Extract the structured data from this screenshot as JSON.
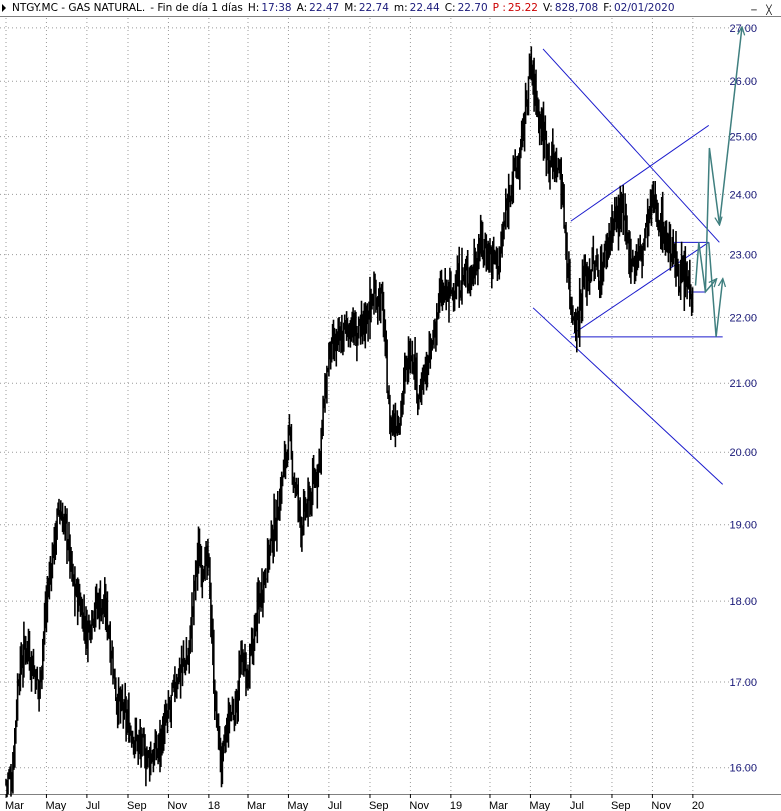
{
  "header": {
    "ticker": "NTGY.MC - GAS NATURAL.",
    "period": "- Fin de día 1 días",
    "h_label": "H:",
    "h_value": "17:38",
    "a_label": "A:",
    "a_value": "22.47",
    "max_label": "M:",
    "max_value": "22.74",
    "min_label": "m:",
    "min_value": "22.44",
    "c_label": "C:",
    "c_value": "22.70",
    "p_label": "P :",
    "p_value": "25.22",
    "v_label": "V:",
    "v_value": "828,708",
    "f_label": "F:",
    "f_value": "02/01/2020"
  },
  "colors": {
    "price": "#000000",
    "trendlines": "#1a1acc",
    "projection": "#3f7f7f",
    "axis_text": "#1a1a7a",
    "header_text": "#1a1a7a",
    "header_p": "#cc0000",
    "grid": "#9a9a9a"
  },
  "window_icons": [
    "minimize-icon",
    "close-icon"
  ],
  "chart_data": {
    "type": "line",
    "style": "daily OHLC bars",
    "x_labels": [
      "Mar",
      "May",
      "Jul",
      "Sep",
      "Nov",
      "18",
      "Mar",
      "May",
      "Jul",
      "Sep",
      "Nov",
      "19",
      "Mar",
      "May",
      "Jul",
      "Sep",
      "Nov",
      "20"
    ],
    "y_ticks": [
      "27.00",
      "26.00",
      "25.00",
      "24.00",
      "23.00",
      "22.00",
      "21.00",
      "20.00",
      "19.00",
      "18.00",
      "17.00",
      "16.00"
    ],
    "y_scale": "log",
    "ylim": [
      15.75,
      27.15
    ],
    "x_range": [
      "2017-03-01",
      "2020-02-20"
    ],
    "grid": true,
    "series": [
      {
        "x": [
          "2017-03-01",
          "2017-03-10",
          "2017-03-20",
          "2017-04-01",
          "2017-04-10",
          "2017-04-20",
          "2017-05-01",
          "2017-05-10",
          "2017-05-20",
          "2017-06-01",
          "2017-06-10",
          "2017-06-20",
          "2017-07-01",
          "2017-07-10",
          "2017-07-20",
          "2017-08-01",
          "2017-08-15",
          "2017-09-01",
          "2017-09-15",
          "2017-10-01",
          "2017-10-15",
          "2017-11-01",
          "2017-11-15",
          "2017-12-01",
          "2017-12-15",
          "2018-01-01",
          "2018-01-10",
          "2018-01-20",
          "2018-02-01",
          "2018-02-10",
          "2018-02-20",
          "2018-03-01",
          "2018-03-15",
          "2018-04-01",
          "2018-04-15",
          "2018-05-01",
          "2018-05-10",
          "2018-05-20",
          "2018-06-01",
          "2018-06-15",
          "2018-07-01",
          "2018-07-15",
          "2018-08-01",
          "2018-08-15",
          "2018-09-01",
          "2018-09-10",
          "2018-09-20",
          "2018-10-01",
          "2018-10-15",
          "2018-11-01",
          "2018-11-15",
          "2018-12-01",
          "2018-12-15",
          "2019-01-01",
          "2019-01-15",
          "2019-02-01",
          "2019-02-15",
          "2019-03-01",
          "2019-03-15",
          "2019-04-01",
          "2019-04-15",
          "2019-05-01",
          "2019-05-15",
          "2019-06-01",
          "2019-06-15",
          "2019-07-01",
          "2019-07-10",
          "2019-07-20",
          "2019-08-01",
          "2019-08-15",
          "2019-09-01",
          "2019-09-15",
          "2019-10-01",
          "2019-10-15",
          "2019-11-01",
          "2019-11-15",
          "2019-12-01",
          "2019-12-15",
          "2020-01-02"
        ],
        "y": [
          15.85,
          15.9,
          17.1,
          17.5,
          17.2,
          16.9,
          18.0,
          18.6,
          19.2,
          18.9,
          18.2,
          18.0,
          17.6,
          17.9,
          18.0,
          17.8,
          16.8,
          16.5,
          16.3,
          16.1,
          16.2,
          16.6,
          17.1,
          17.3,
          18.6,
          18.4,
          16.8,
          16.0,
          16.6,
          16.7,
          17.3,
          17.0,
          17.9,
          18.6,
          19.2,
          20.2,
          19.6,
          19.0,
          19.3,
          19.8,
          21.4,
          21.6,
          21.9,
          21.7,
          22.2,
          22.4,
          22.2,
          20.4,
          20.5,
          21.6,
          20.8,
          21.4,
          22.3,
          22.4,
          22.6,
          22.7,
          23.2,
          23.0,
          22.9,
          24.2,
          24.6,
          26.3,
          25.3,
          24.6,
          24.4,
          22.2,
          21.9,
          22.6,
          22.8,
          22.7,
          23.5,
          23.7,
          22.9,
          23.0,
          23.9,
          23.5,
          23.0,
          22.6,
          22.5
        ]
      }
    ],
    "trendlines": [
      {
        "x": [
          "2019-05-20",
          "2020-02-10"
        ],
        "y": [
          26.6,
          23.2
        ]
      },
      {
        "x": [
          "2019-05-05",
          "2020-02-15"
        ],
        "y": [
          22.15,
          19.55
        ]
      },
      {
        "x": [
          "2019-07-01",
          "2020-01-25"
        ],
        "y": [
          23.55,
          25.2
        ]
      },
      {
        "x": [
          "2019-07-05",
          "2020-01-25"
        ],
        "y": [
          21.75,
          23.2
        ]
      },
      {
        "x": [
          "2019-07-01",
          "2020-02-15"
        ],
        "y": [
          21.7,
          21.7
        ]
      },
      {
        "x": [
          "2019-12-01",
          "2020-01-25"
        ],
        "y": [
          23.2,
          23.2
        ]
      },
      {
        "x": [
          "2019-12-25",
          "2020-01-20"
        ],
        "y": [
          22.4,
          22.4
        ]
      }
    ],
    "projection": [
      {
        "x": [
          "2020-01-05",
          "2020-01-10",
          "2020-01-20",
          "2020-02-05"
        ],
        "y": [
          22.5,
          23.2,
          22.4,
          22.6
        ]
      },
      {
        "x": [
          "2020-01-20",
          "2020-01-26",
          "2020-02-10"
        ],
        "y": [
          22.4,
          24.8,
          23.5
        ]
      },
      {
        "x": [
          "2020-02-10",
          "2020-03-15"
        ],
        "y": [
          23.5,
          27.0
        ]
      },
      {
        "x": [
          "2020-01-25",
          "2020-02-05",
          "2020-02-15"
        ],
        "y": [
          23.2,
          21.7,
          22.6
        ]
      }
    ]
  }
}
